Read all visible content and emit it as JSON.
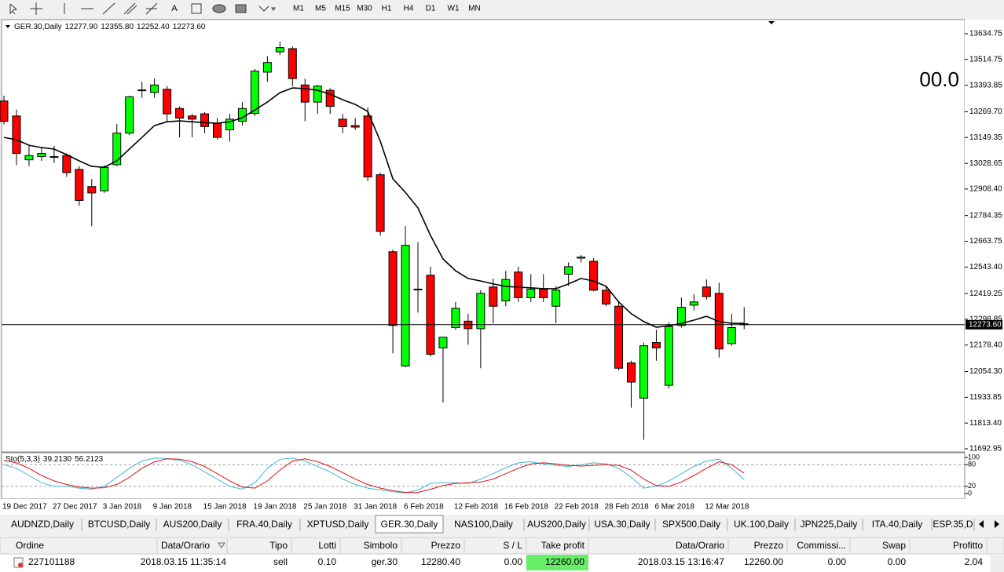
{
  "toolbar": {
    "timeframes": [
      "M1",
      "M5",
      "M15",
      "M30",
      "H1",
      "H4",
      "D1",
      "W1",
      "MN"
    ]
  },
  "chart": {
    "type": "candlestick",
    "symbol": "GER.30,Daily",
    "ohlc_labels": [
      "12277.90",
      "12355.80",
      "12252.40",
      "12273.60"
    ],
    "overlay_text": "00.0",
    "overlay_color": "#c8b88a",
    "bull_color": "#00ff00",
    "bear_color": "#ff0000",
    "ylim": [
      11681.9,
      13693.5
    ],
    "yticks": [
      13634.75,
      13514.75,
      13393.85,
      {
        "value": 13269.7,
        "label": "13269.70"
      },
      13149.35,
      13028.65,
      {
        "value": 12908.4,
        "label": "12908.40"
      },
      12784.35,
      12663.75,
      {
        "value": 12543.4,
        "label": "12543.40"
      },
      12419.25,
      12298.85,
      {
        "value": 12178.4,
        "label": "12178.40"
      },
      {
        "value": 12054.3,
        "label": "12054.30"
      },
      11933.85,
      {
        "value": 11813.4,
        "label": "11813.40"
      },
      11692.95
    ],
    "last_price": {
      "value": 12273.6,
      "label": "12273.60"
    },
    "categories": [
      "19 Dec 2017",
      null,
      null,
      null,
      "27 Dec 2017",
      null,
      null,
      null,
      "3 Jan 2018",
      null,
      null,
      null,
      "9 Jan 2018",
      null,
      null,
      null,
      "15 Jan 2018",
      null,
      null,
      null,
      "19 Jan 2018",
      null,
      null,
      null,
      "25 Jan 2018",
      null,
      null,
      null,
      "31 Jan 2018",
      null,
      null,
      null,
      "6 Feb 2018",
      null,
      null,
      null,
      "12 Feb 2018",
      null,
      null,
      null,
      "16 Feb 2018",
      null,
      null,
      null,
      "22 Feb 2018",
      null,
      null,
      null,
      "28 Feb 2018",
      null,
      null,
      null,
      "6 Mar 2018",
      null,
      null,
      null,
      "12 Mar 2018",
      null,
      null,
      null
    ],
    "open": [
      13320,
      13250,
      13045,
      13060,
      13060,
      13065,
      13000,
      12920,
      12900,
      13022,
      13170,
      13370,
      13360,
      13375,
      13285,
      13250,
      13260,
      13215,
      13185,
      13225,
      13262,
      13455,
      13550,
      13565,
      13395,
      13315,
      13370,
      13235,
      13205,
      13250,
      12975,
      12615,
      12080,
      12440,
      12505,
      12165,
      12260,
      12290,
      12255,
      12450,
      12385,
      12520,
      12400,
      12440,
      12360,
      12510,
      12585,
      12570,
      12435,
      12360,
      12095,
      11930,
      12190,
      11990,
      12270,
      12365,
      12450,
      12420,
      12185,
      12277.9
    ],
    "high": [
      13345,
      13280,
      13110,
      13100,
      13110,
      13075,
      13015,
      12955,
      13020,
      13212,
      13345,
      13410,
      13425,
      13390,
      13295,
      13260,
      13268,
      13240,
      13260,
      13315,
      13470,
      13530,
      13598,
      13575,
      13425,
      13395,
      13380,
      13260,
      13240,
      13290,
      12985,
      12625,
      12735,
      12660,
      12545,
      12215,
      12380,
      12325,
      12435,
      12490,
      12525,
      12545,
      12510,
      12510,
      12455,
      12565,
      12600,
      12585,
      12455,
      12380,
      12105,
      12190,
      12250,
      12285,
      12400,
      12415,
      12485,
      12470,
      12325,
      12355.8
    ],
    "low": [
      13210,
      13020,
      13015,
      13040,
      13030,
      12965,
      12830,
      12735,
      12890,
      13015,
      13160,
      13335,
      13335,
      13225,
      13150,
      13150,
      13170,
      13140,
      13130,
      13205,
      13250,
      13410,
      13535,
      13390,
      13225,
      13260,
      13260,
      13170,
      13185,
      12945,
      12690,
      12140,
      12075,
      12330,
      12125,
      11910,
      12250,
      12180,
      12070,
      12280,
      12360,
      12380,
      12380,
      12380,
      12280,
      12455,
      12565,
      12430,
      12360,
      12060,
      11885,
      11735,
      12105,
      11975,
      12260,
      12340,
      12390,
      12120,
      12175,
      12252.4
    ],
    "close": [
      13225,
      13075,
      13065,
      13075,
      13058,
      12985,
      12855,
      12890,
      13010,
      13170,
      13340,
      13372,
      13395,
      13260,
      13240,
      13235,
      13200,
      13150,
      13235,
      13285,
      13460,
      13500,
      13570,
      13425,
      13315,
      13390,
      13295,
      13200,
      13198,
      12965,
      12710,
      12270,
      12645,
      12440,
      12135,
      12215,
      12350,
      12255,
      12420,
      12360,
      12485,
      12400,
      12440,
      12400,
      12435,
      12545,
      12590,
      12435,
      12370,
      12070,
      12005,
      12175,
      12165,
      12265,
      12355,
      12380,
      12405,
      12160,
      12260,
      12273.6
    ],
    "ma": {
      "color": "#000000",
      "values": [
        13150,
        13139,
        13113,
        13102,
        13095,
        13069,
        13040,
        13014,
        13010,
        13040,
        13095,
        13150,
        13205,
        13223,
        13227,
        13223,
        13219,
        13216,
        13223,
        13242,
        13278,
        13315,
        13359,
        13381,
        13378,
        13370,
        13352,
        13326,
        13304,
        13271,
        13132,
        12956,
        12893,
        12820,
        12691,
        12581,
        12526,
        12490,
        12478,
        12464,
        12453,
        12449,
        12446,
        12442,
        12442,
        12464,
        12490,
        12478,
        12453,
        12380,
        12325,
        12288,
        12262,
        12269,
        12280,
        12295,
        12313,
        12288,
        12280,
        12280
      ]
    }
  },
  "stoch": {
    "title": "Sto(5,3,3)",
    "ylim": [
      0,
      100
    ],
    "yticks": [
      100,
      80,
      20,
      0
    ],
    "levels": [
      80,
      20
    ],
    "series": [
      {
        "color": "#3fb6d8",
        "last_label": "39.2130",
        "values": [
          80,
          70,
          50,
          30,
          20,
          20,
          15,
          12,
          20,
          45,
          70,
          90,
          98,
          97,
          92,
          80,
          60,
          40,
          20,
          12,
          30,
          70,
          95,
          98,
          90,
          75,
          60,
          40,
          25,
          15,
          10,
          5,
          2,
          10,
          28,
          30,
          30,
          28,
          40,
          55,
          72,
          85,
          88,
          82,
          78,
          75,
          80,
          85,
          82,
          70,
          45,
          15,
          20,
          35,
          55,
          75,
          90,
          95,
          70,
          39.213
        ]
      },
      {
        "color": "#e01010",
        "last_label": "56.2123",
        "values": [
          92,
          85,
          70,
          50,
          35,
          25,
          18,
          15,
          16,
          25,
          45,
          70,
          88,
          96,
          95,
          88,
          75,
          55,
          35,
          18,
          15,
          35,
          65,
          90,
          96,
          88,
          75,
          58,
          40,
          25,
          15,
          8,
          3,
          3,
          12,
          22,
          28,
          30,
          32,
          40,
          55,
          70,
          82,
          85,
          82,
          78,
          76,
          78,
          80,
          78,
          65,
          40,
          22,
          20,
          32,
          50,
          70,
          88,
          80,
          56.2123
        ]
      }
    ]
  },
  "tabs": {
    "items": [
      "AUDNZD,Daily",
      "BTCUSD,Daily",
      "AUS200,Daily",
      "FRA.40,Daily",
      "XPTUSD,Daily",
      "GER.30,Daily",
      "NAS100,Daily",
      "AUS200,Daily",
      "USA.30,Daily",
      "SPX500,Daily",
      "UK.100,Daily",
      "JPN225,Daily",
      "ITA.40,Daily",
      "ESP.35,D"
    ],
    "active": 5
  },
  "table": {
    "columns": [
      "Ordine",
      "Data/Orario",
      "Tipo",
      "Lotti",
      "Simbolo",
      "Prezzo",
      "S / L",
      "Take profit",
      "Data/Orario",
      "Prezzo",
      "Commissi...",
      "Swap",
      "Profitto"
    ],
    "rows": [
      [
        "227101188",
        "2018.03.15 11:35:14",
        "sell",
        "0.10",
        "ger.30",
        "12280.40",
        "0.00",
        "12260.00",
        "2018.03.15 13:16:47",
        "12260.00",
        "0.00",
        "0.00",
        "2.04"
      ]
    ]
  }
}
